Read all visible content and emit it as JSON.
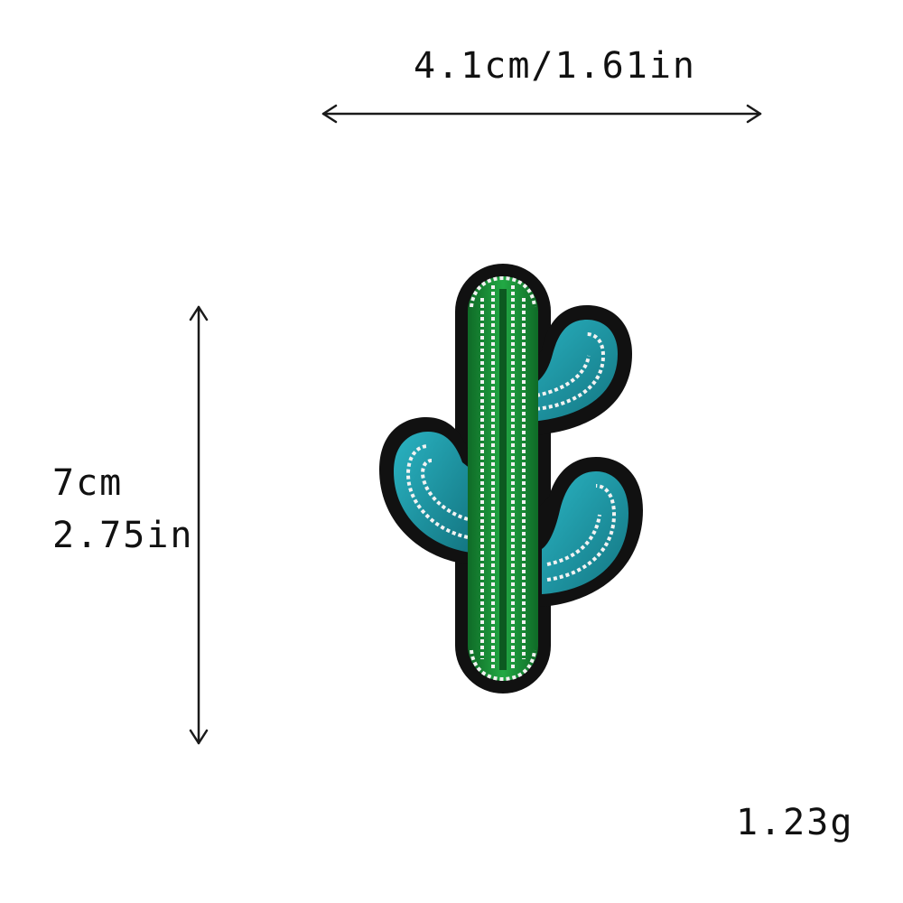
{
  "dimensions": {
    "width_label": "4.1cm/1.61in",
    "height_label_cm": "7cm",
    "height_label_in": "2.75in"
  },
  "weight_label": "1.23g",
  "product": {
    "type": "cactus-embroidered-patch",
    "colors": {
      "border": "#111111",
      "trunk_green": "#1f9a3c",
      "trunk_dark": "#0f6b27",
      "arm_teal": "#1e9cab",
      "arm_dark": "#137581",
      "stitch_white": "#f2f2f2"
    }
  },
  "arrow_color": "#1a1a1a"
}
